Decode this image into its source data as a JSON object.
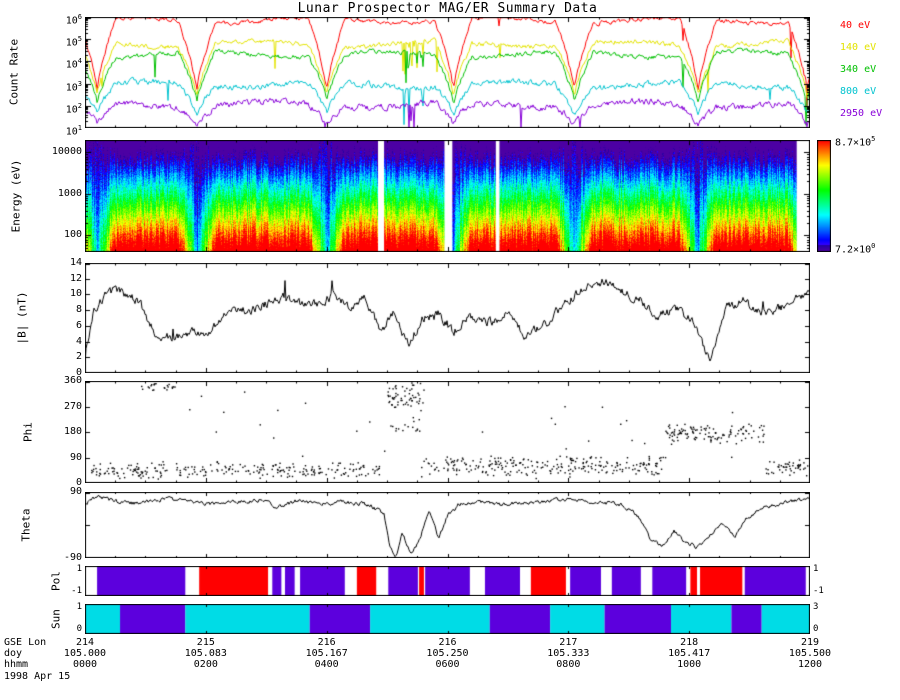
{
  "title": "Lunar Prospector MAG/ER Summary Data",
  "axis": {
    "x": {
      "row_names": [
        "GSE Lon",
        "doy",
        "hhmm"
      ],
      "date": "1998 Apr 15",
      "tick_hours": [
        0,
        2,
        4,
        6,
        8,
        10,
        12
      ],
      "rows": {
        "gse_lon": [
          "214",
          "215",
          "216",
          "216",
          "217",
          "218",
          "219"
        ],
        "doy": [
          "105.000",
          "105.083",
          "105.167",
          "105.250",
          "105.333",
          "105.417",
          "105.500"
        ],
        "hhmm": [
          "0000",
          "0200",
          "0400",
          "0600",
          "0800",
          "1000",
          "1200"
        ]
      }
    }
  },
  "chart_data": [
    {
      "panel": "count_rate",
      "type": "line",
      "ylabel": "Count Rate",
      "yscale": "log",
      "ylim": [
        10,
        1000000
      ],
      "ytick_exponents": [
        1,
        2,
        3,
        4,
        5,
        6
      ],
      "x_hours": [
        0,
        12
      ],
      "dip_centers_hours": [
        0.2,
        1.85,
        4.0,
        6.1,
        8.1,
        10.15,
        11.95
      ],
      "dip_halfwidth_hours": 0.55,
      "series": [
        {
          "label": "40 eV",
          "color": "#ff0000",
          "plateau_log10": 5.85,
          "dip_log10": 2.7,
          "noise_log10": 0.08,
          "clip_log10": 5.97
        },
        {
          "label": "140 eV",
          "color": "#e3e300",
          "plateau_log10": 4.78,
          "dip_log10": 2.45,
          "noise_log10": 0.09
        },
        {
          "label": "340 eV",
          "color": "#00c000",
          "plateau_log10": 4.32,
          "dip_log10": 2.15,
          "noise_log10": 0.09
        },
        {
          "label": "800 eV",
          "color": "#00c3cf",
          "plateau_log10": 2.95,
          "dip_log10": 1.6,
          "noise_log10": 0.11
        },
        {
          "label": "2950 eV",
          "color": "#8800d8",
          "plateau_log10": 2.05,
          "dip_log10": 1.12,
          "noise_log10": 0.12
        }
      ]
    },
    {
      "panel": "spectrogram",
      "type": "heatmap",
      "ylabel": "Energy (eV)",
      "yscale": "log",
      "ylim": [
        40,
        20000
      ],
      "yticks": [
        100,
        1000,
        10000
      ],
      "value_range": [
        7.2,
        870000
      ],
      "colorbar": {
        "top": {
          "mantissa": "8.7×10",
          "exponent": "5"
        },
        "bottom": {
          "mantissa": "7.2×10",
          "exponent": "0"
        }
      },
      "gaps_hours": [
        [
          4.85,
          4.95
        ],
        [
          5.95,
          6.08
        ],
        [
          6.8,
          6.86
        ],
        [
          11.78,
          11.99
        ]
      ]
    },
    {
      "panel": "bmag",
      "type": "line",
      "ylabel": "|B| (nT)",
      "ylim": [
        0,
        14
      ],
      "yticks": [
        0,
        2,
        4,
        6,
        8,
        10,
        12,
        14
      ],
      "noise": 0.7,
      "points": [
        [
          0,
          2
        ],
        [
          0.15,
          8
        ],
        [
          0.3,
          9.5
        ],
        [
          0.5,
          10.6
        ],
        [
          0.7,
          10
        ],
        [
          0.9,
          9.2
        ],
        [
          1.05,
          6.5
        ],
        [
          1.2,
          4.8
        ],
        [
          1.5,
          4.4
        ],
        [
          1.8,
          5.5
        ],
        [
          2.0,
          4.6
        ],
        [
          2.2,
          6.2
        ],
        [
          2.45,
          8.4
        ],
        [
          2.7,
          8.0
        ],
        [
          3.0,
          8.8
        ],
        [
          3.3,
          9.6
        ],
        [
          3.6,
          8.6
        ],
        [
          3.9,
          9.0
        ],
        [
          4.15,
          9.9
        ],
        [
          4.4,
          8.4
        ],
        [
          4.65,
          9.6
        ],
        [
          4.9,
          5.2
        ],
        [
          5.1,
          7.6
        ],
        [
          5.35,
          3.6
        ],
        [
          5.6,
          7.0
        ],
        [
          5.85,
          7.6
        ],
        [
          6.1,
          5.2
        ],
        [
          6.4,
          7.2
        ],
        [
          6.7,
          6.4
        ],
        [
          7.0,
          7.6
        ],
        [
          7.3,
          4.6
        ],
        [
          7.6,
          6.2
        ],
        [
          7.95,
          8.8
        ],
        [
          8.3,
          11.0
        ],
        [
          8.6,
          11.6
        ],
        [
          8.9,
          10.4
        ],
        [
          9.2,
          9.2
        ],
        [
          9.5,
          7.2
        ],
        [
          9.8,
          8.2
        ],
        [
          10.1,
          6.4
        ],
        [
          10.35,
          1.2
        ],
        [
          10.6,
          8.4
        ],
        [
          10.9,
          9.2
        ],
        [
          11.2,
          7.6
        ],
        [
          11.5,
          8.2
        ],
        [
          11.8,
          9.4
        ],
        [
          12,
          10.6
        ]
      ]
    },
    {
      "panel": "phi",
      "type": "scatter",
      "ylabel": "Phi",
      "ylim": [
        0,
        360
      ],
      "yticks": [
        0,
        90,
        180,
        270,
        360
      ],
      "clusters": [
        {
          "t": [
            0.05,
            4.95
          ],
          "y": [
            15,
            80
          ],
          "n": 250
        },
        {
          "t": [
            0.9,
            1.5
          ],
          "y": [
            325,
            360
          ],
          "n": 22
        },
        {
          "t": [
            5.0,
            5.6
          ],
          "y": [
            255,
            360
          ],
          "n": 60
        },
        {
          "t": [
            5.05,
            5.55
          ],
          "y": [
            165,
            235
          ],
          "n": 14
        },
        {
          "t": [
            5.55,
            9.6
          ],
          "y": [
            22,
            105
          ],
          "n": 250
        },
        {
          "t": [
            9.6,
            11.3
          ],
          "y": [
            135,
            215
          ],
          "n": 120
        },
        {
          "t": [
            11.25,
            12.0
          ],
          "y": [
            25,
            95
          ],
          "n": 45
        },
        {
          "t": [
            0.0,
            12.0
          ],
          "y": [
            5,
            360
          ],
          "n": 35
        }
      ]
    },
    {
      "panel": "theta",
      "type": "line",
      "ylabel": "Theta",
      "ylim": [
        -90,
        90
      ],
      "yticks": [
        90,
        -90
      ],
      "noise": 7,
      "points": [
        [
          0,
          55
        ],
        [
          0.2,
          78
        ],
        [
          0.5,
          66
        ],
        [
          0.9,
          58
        ],
        [
          1.3,
          72
        ],
        [
          1.7,
          64
        ],
        [
          2.1,
          56
        ],
        [
          2.5,
          62
        ],
        [
          2.9,
          68
        ],
        [
          3.2,
          48
        ],
        [
          3.5,
          66
        ],
        [
          3.9,
          58
        ],
        [
          4.3,
          62
        ],
        [
          4.7,
          56
        ],
        [
          4.95,
          30
        ],
        [
          5.05,
          -60
        ],
        [
          5.15,
          -85
        ],
        [
          5.25,
          -20
        ],
        [
          5.4,
          -80
        ],
        [
          5.55,
          -35
        ],
        [
          5.7,
          45
        ],
        [
          5.85,
          -40
        ],
        [
          6.0,
          25
        ],
        [
          6.2,
          58
        ],
        [
          6.5,
          64
        ],
        [
          6.9,
          56
        ],
        [
          7.3,
          62
        ],
        [
          7.7,
          66
        ],
        [
          8.1,
          70
        ],
        [
          8.5,
          62
        ],
        [
          8.9,
          56
        ],
        [
          9.15,
          25
        ],
        [
          9.35,
          -35
        ],
        [
          9.55,
          -58
        ],
        [
          9.75,
          -15
        ],
        [
          9.95,
          -48
        ],
        [
          10.15,
          -62
        ],
        [
          10.35,
          -25
        ],
        [
          10.55,
          5
        ],
        [
          10.75,
          -35
        ],
        [
          10.95,
          15
        ],
        [
          11.2,
          48
        ],
        [
          11.5,
          58
        ],
        [
          11.8,
          68
        ],
        [
          12,
          74
        ]
      ]
    },
    {
      "panel": "pol",
      "type": "bands",
      "ylabel": "Pol",
      "axis_labels": {
        "left": [
          "1",
          "-1"
        ],
        "right": [
          "1",
          "-1"
        ]
      },
      "colors": {
        "P": "#5c00dd",
        "R": "#ff0000"
      },
      "segments": [
        [
          0.2,
          1.66,
          "P"
        ],
        [
          1.89,
          3.03,
          "R"
        ],
        [
          3.1,
          3.25,
          "P"
        ],
        [
          3.31,
          3.47,
          "P"
        ],
        [
          3.56,
          4.3,
          "P"
        ],
        [
          4.5,
          4.82,
          "R"
        ],
        [
          5.02,
          5.51,
          "P"
        ],
        [
          5.53,
          5.61,
          "R"
        ],
        [
          5.63,
          6.37,
          "P"
        ],
        [
          6.62,
          7.2,
          "P"
        ],
        [
          7.38,
          7.96,
          "R"
        ],
        [
          8.03,
          8.54,
          "P"
        ],
        [
          8.72,
          9.2,
          "P"
        ],
        [
          9.39,
          9.95,
          "P"
        ],
        [
          10.02,
          10.13,
          "R"
        ],
        [
          10.18,
          10.88,
          "R"
        ],
        [
          10.92,
          11.93,
          "P"
        ]
      ]
    },
    {
      "panel": "sun",
      "type": "bands",
      "ylabel": "Sun",
      "axis_labels": {
        "left": [
          "1",
          "0"
        ],
        "right": [
          "3",
          "0"
        ]
      },
      "colors": {
        "C": "#00dce6",
        "P": "#5c00dd"
      },
      "segments": [
        [
          0,
          0.58,
          "C"
        ],
        [
          0.58,
          1.66,
          "P"
        ],
        [
          1.66,
          3.72,
          "C"
        ],
        [
          3.72,
          4.72,
          "P"
        ],
        [
          4.72,
          6.7,
          "C"
        ],
        [
          6.7,
          7.7,
          "P"
        ],
        [
          7.7,
          8.6,
          "C"
        ],
        [
          8.6,
          9.7,
          "P"
        ],
        [
          9.7,
          10.7,
          "C"
        ],
        [
          10.7,
          11.2,
          "P"
        ],
        [
          11.2,
          12,
          "C"
        ]
      ]
    }
  ]
}
